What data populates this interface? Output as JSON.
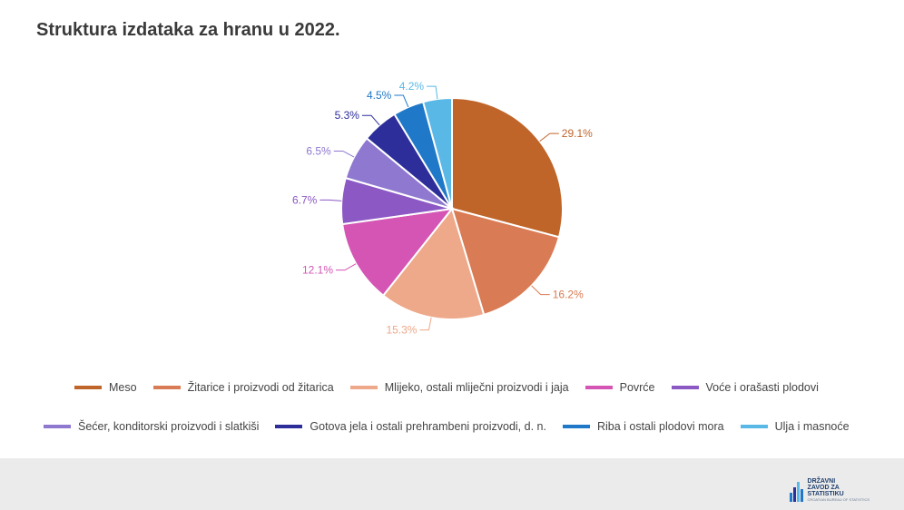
{
  "title": "Struktura izdataka za hranu u 2022.",
  "chart_data": {
    "type": "pie",
    "title": "Struktura izdataka za hranu u 2022.",
    "slices": [
      {
        "label": "Meso",
        "value": 29.1,
        "display": "29.1%",
        "color": "#c0652a"
      },
      {
        "label": "Žitarice i proizvodi od žitarica",
        "value": 16.2,
        "display": "16.2%",
        "color": "#d97b54"
      },
      {
        "label": "Mlijeko, ostali mliječni proizvodi i jaja",
        "value": 15.3,
        "display": "15.3%",
        "color": "#eea88a"
      },
      {
        "label": "Povrće",
        "value": 12.1,
        "display": "12.1%",
        "color": "#d455b4"
      },
      {
        "label": "Voće i orašasti plodovi",
        "value": 6.7,
        "display": "6.7%",
        "color": "#8b58c4"
      },
      {
        "label": "Šećer, konditorski proizvodi i slatkiši",
        "value": 6.5,
        "display": "6.5%",
        "color": "#8e78d0"
      },
      {
        "label": "Gotova jela i ostali prehrambeni proizvodi, d. n.",
        "value": 5.3,
        "display": "5.3%",
        "color": "#2e2e9a"
      },
      {
        "label": "Riba i ostali plodovi mora",
        "value": 4.5,
        "display": "4.5%",
        "color": "#1f78c8"
      },
      {
        "label": "Ulja i masnoće",
        "value": 4.2,
        "display": "4.2%",
        "color": "#5ab8e6"
      }
    ],
    "legend_position": "bottom"
  },
  "logo": {
    "line1": "DRŽAVNI",
    "line2": "ZAVOD ZA",
    "line3": "STATISTIKU",
    "line4": "CROATIAN BUREAU OF STATISTICS"
  }
}
